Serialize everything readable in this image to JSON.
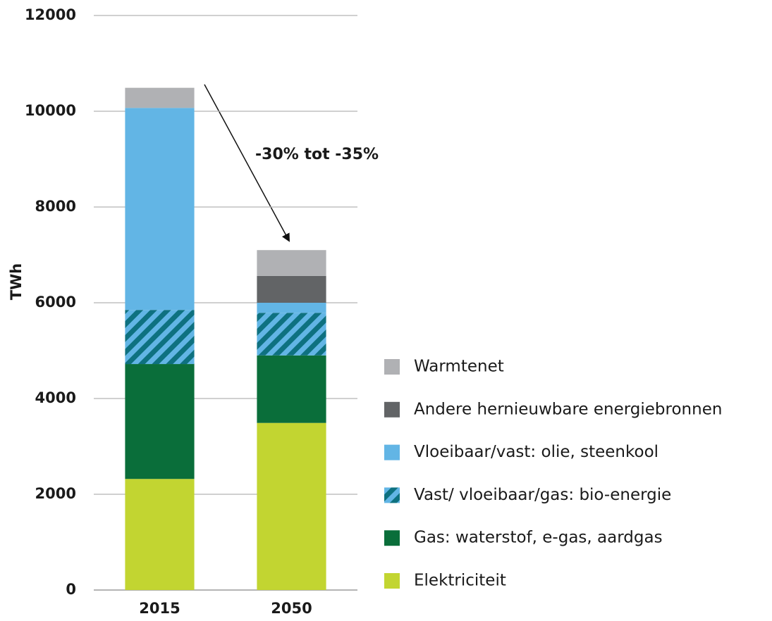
{
  "chart_data": {
    "type": "stacked_bar",
    "y_label": "TWh",
    "annotation": "-30% tot -35%",
    "categories": [
      "2015",
      "2050"
    ],
    "series": [
      {
        "name": "Elektriciteit",
        "color": "#c2d531",
        "values": [
          2320,
          3490
        ]
      },
      {
        "name": "Gas: waterstof, e-gas, aardgas",
        "color": "#0a6e3a",
        "values": [
          2400,
          1410
        ]
      },
      {
        "name": "Vast/ vloeibaar/gas: bio-energie",
        "color": "#62b5e5",
        "hatch": "#0e7180",
        "values": [
          1130,
          890
        ]
      },
      {
        "name": "Vloeibaar/vast: olie, steenkool",
        "color": "#62b5e5",
        "values": [
          4220,
          210
        ]
      },
      {
        "name": "Andere hernieuwbare energiebronnen",
        "color": "#626466",
        "values": [
          0,
          560
        ]
      },
      {
        "name": "Warmtenet",
        "color": "#b0b1b4",
        "values": [
          420,
          540
        ]
      }
    ],
    "ylim": [
      0,
      12000
    ],
    "yticks": [
      0,
      2000,
      4000,
      6000,
      8000,
      10000,
      12000
    ],
    "grid": true
  }
}
